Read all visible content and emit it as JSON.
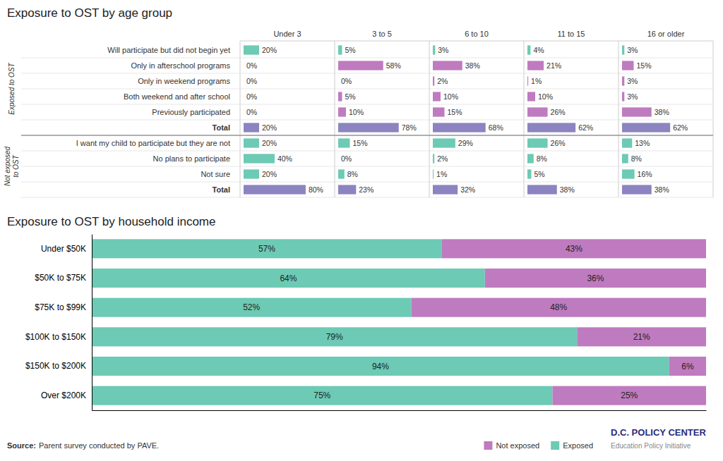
{
  "chart_data": [
    {
      "type": "table",
      "title": "Exposure to OST by age group",
      "categories": [
        "Under 3",
        "3 to 5",
        "6 to 10",
        "11 to 15",
        "16 or older"
      ],
      "orientation": "horizontal",
      "data_labels": true,
      "xlim": [
        0,
        100
      ],
      "groups": [
        {
          "name": "Exposed to OST",
          "series": [
            {
              "name": "Will participate but did not begin yet",
              "color": "#6DCAB4",
              "values": [
                20,
                5,
                3,
                4,
                3
              ],
              "value_labels": [
                "20%",
                "5%",
                "3%",
                "4%",
                "3%"
              ]
            },
            {
              "name": "Only in afterschool programs",
              "color": "#BF7BBF",
              "values": [
                0,
                58,
                38,
                21,
                15
              ],
              "value_labels": [
                "0%",
                "58%",
                "38%",
                "21%",
                "15%"
              ]
            },
            {
              "name": "Only in weekend programs",
              "color": "#BF7BBF",
              "values": [
                0,
                0,
                2,
                1,
                3
              ],
              "value_labels": [
                "0%",
                "0%",
                "2%",
                "1%",
                "3%"
              ]
            },
            {
              "name": "Both weekend and after school",
              "color": "#BF7BBF",
              "values": [
                0,
                5,
                10,
                10,
                3
              ],
              "value_labels": [
                "0%",
                "5%",
                "10%",
                "10%",
                "3%"
              ]
            },
            {
              "name": "Previously participated",
              "color": "#BF7BBF",
              "values": [
                0,
                10,
                15,
                26,
                38
              ],
              "value_labels": [
                "0%",
                "10%",
                "15%",
                "26%",
                "38%"
              ]
            },
            {
              "name": "Total",
              "color": "#8B84C0",
              "values": [
                20,
                78,
                68,
                62,
                62
              ],
              "value_labels": [
                "20%",
                "78%",
                "68%",
                "62%",
                "62%"
              ]
            }
          ]
        },
        {
          "name": "Not exposed\nto OST",
          "series": [
            {
              "name": "I want my child to participate but they are not",
              "color": "#6DCAB4",
              "values": [
                20,
                15,
                29,
                26,
                13
              ],
              "value_labels": [
                "20%",
                "15%",
                "29%",
                "26%",
                "13%"
              ]
            },
            {
              "name": "No plans to participate",
              "color": "#6DCAB4",
              "values": [
                40,
                0,
                2,
                8,
                8
              ],
              "value_labels": [
                "40%",
                "0%",
                "2%",
                "8%",
                "8%"
              ]
            },
            {
              "name": "Not sure",
              "color": "#6DCAB4",
              "values": [
                20,
                8,
                1,
                5,
                16
              ],
              "value_labels": [
                "20%",
                "8%",
                "1%",
                "5%",
                "16%"
              ]
            },
            {
              "name": "Total",
              "color": "#8B84C0",
              "values": [
                80,
                23,
                32,
                38,
                38
              ],
              "value_labels": [
                "80%",
                "23%",
                "32%",
                "38%",
                "38%"
              ]
            }
          ]
        }
      ]
    },
    {
      "type": "bar",
      "title": "Exposure to OST by household income",
      "orientation": "horizontal",
      "stacked": true,
      "data_labels": true,
      "tick_labels": "y",
      "legend": "lower right",
      "categories": [
        "Under $50K",
        "$50K to $75K",
        "$75K to $99K",
        "$100K to $150K",
        "$150K to $200K",
        "Over $200K"
      ],
      "xlim": [
        0,
        100
      ],
      "series": [
        {
          "name": "Exposed",
          "color": "#6DCAB4",
          "values": [
            57,
            64,
            52,
            79,
            94,
            75
          ],
          "value_labels": [
            "57%",
            "64%",
            "52%",
            "79%",
            "94%",
            "75%"
          ]
        },
        {
          "name": "Not exposed",
          "color": "#BF7BBF",
          "values": [
            43,
            36,
            48,
            21,
            6,
            25
          ],
          "value_labels": [
            "43%",
            "36%",
            "48%",
            "21%",
            "6%",
            "25%"
          ]
        }
      ],
      "annotations": [
        {
          "text": "Source:"
        },
        {
          "text": "Parent survey conducted by PAVE."
        },
        {
          "text": "D.C. POLICY CENTER",
          "color": "#2B2B7B"
        },
        {
          "text": "Education Policy Initiative",
          "color": "#888888"
        }
      ]
    }
  ]
}
